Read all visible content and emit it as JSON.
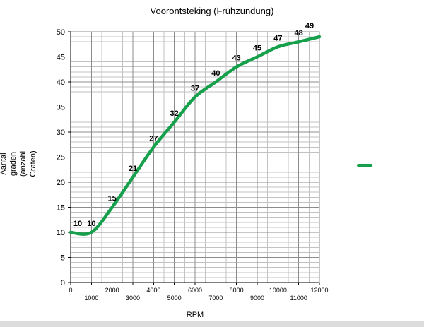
{
  "y_axis_label_lines": [
    "Aantal",
    "graden",
    "(anzahl",
    "Graten)"
  ],
  "colors": {
    "line": "#16a04c",
    "grid_minor": "#c2c2c2",
    "grid_major": "#8c8c8c",
    "axis": "#000000",
    "point_label": "#000000"
  },
  "chart_data": {
    "type": "line",
    "title": "Voorontsteking (Frühzundung)",
    "xlabel": "RPM",
    "ylabel": "Aantal graden (anzahl Graten)",
    "x": [
      0,
      1000,
      2000,
      3000,
      4000,
      5000,
      6000,
      7000,
      8000,
      9000,
      10000,
      11000,
      12000
    ],
    "values": [
      10,
      10,
      15,
      21,
      27,
      32,
      37,
      40,
      43,
      45,
      47,
      48,
      49
    ],
    "point_labels": [
      "10",
      "10",
      "15",
      "21",
      "27",
      "32",
      "37",
      "40",
      "43",
      "45",
      "47",
      "48",
      "49"
    ],
    "xlim": [
      0,
      12000
    ],
    "ylim": [
      0,
      50
    ],
    "x_major_ticks": [
      0,
      1000,
      2000,
      3000,
      4000,
      5000,
      6000,
      7000,
      8000,
      9000,
      10000,
      11000,
      12000
    ],
    "x_tick_labels": [
      "0",
      "1000",
      "2000",
      "3000",
      "4000",
      "5000",
      "6000",
      "7000",
      "8000",
      "9000",
      "10000",
      "11000",
      "12000"
    ],
    "x_minor_step": 500,
    "y_major_ticks": [
      0,
      5,
      10,
      15,
      20,
      25,
      30,
      35,
      40,
      45,
      50
    ],
    "y_tick_labels": [
      "0",
      "5",
      "10",
      "15",
      "20",
      "25",
      "30",
      "35",
      "40",
      "45",
      "50"
    ],
    "y_minor_step": 1,
    "grid": true,
    "smoothed": true,
    "legend_position": "right"
  }
}
